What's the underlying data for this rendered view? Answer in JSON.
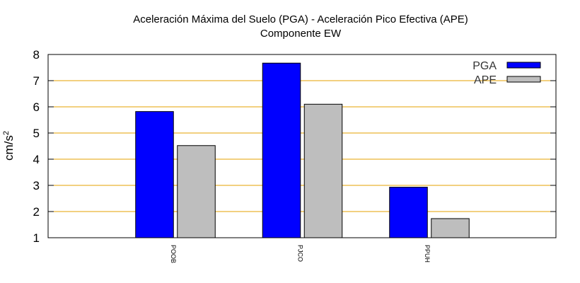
{
  "chart_data": {
    "type": "bar",
    "title": "Aceleración Máxima del Suelo (PGA) -  Aceleración Pico Efectiva (APE)",
    "subtitle": "Componente EW",
    "xlabel": "",
    "ylabel": {
      "base": "cm/s",
      "sup": "2"
    },
    "ylim": [
      1,
      8
    ],
    "yticks": [
      1,
      2,
      3,
      4,
      5,
      6,
      7,
      8
    ],
    "grid": true,
    "legend_position": "top-right",
    "categories": [
      "POOB",
      "PJCO",
      "PPUH"
    ],
    "series": [
      {
        "name": "PGA",
        "color": "#0000ff",
        "values": [
          5.82,
          7.67,
          2.93
        ]
      },
      {
        "name": "APE",
        "color": "#bebebe",
        "values": [
          4.52,
          6.1,
          1.73
        ]
      }
    ],
    "grid_color": "#e6a000"
  }
}
